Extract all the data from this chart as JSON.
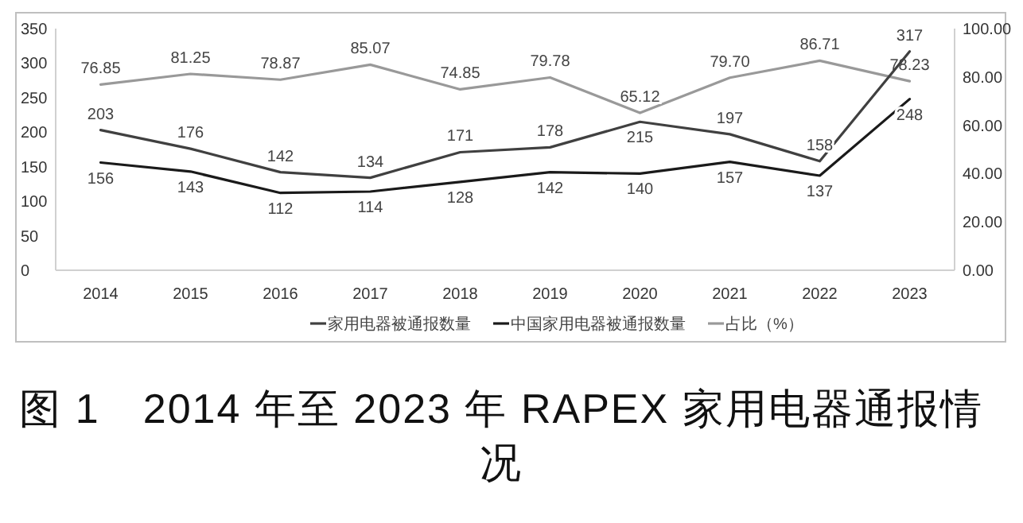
{
  "chart_data": {
    "type": "line",
    "title": "图 1　2014 年至 2023 年 RAPEX 家用电器通报情况",
    "categories": [
      "2014",
      "2015",
      "2016",
      "2017",
      "2018",
      "2019",
      "2020",
      "2021",
      "2022",
      "2023"
    ],
    "series": [
      {
        "name": "家用电器被通报数量",
        "color": "#404040",
        "values": [
          203,
          176,
          142,
          134,
          171,
          178,
          215,
          197,
          158,
          317
        ]
      },
      {
        "name": "中国家用电器被通报数量",
        "color": "#1a1a1a",
        "values": [
          156,
          143,
          112,
          114,
          128,
          142,
          140,
          157,
          137,
          248
        ]
      },
      {
        "name": "占比（%）",
        "color": "#999999",
        "axis": "y2",
        "values": [
          76.85,
          81.25,
          78.87,
          85.07,
          74.85,
          79.78,
          65.12,
          79.7,
          86.71,
          78.23
        ],
        "value_labels": [
          "76.85",
          "81.25",
          "78.87",
          "85.07",
          "74.85",
          "79.78",
          "65.12",
          "79.70",
          "86.71",
          "78.23"
        ]
      }
    ],
    "ylim": [
      0,
      350
    ],
    "yticks": [
      0,
      50,
      100,
      150,
      200,
      250,
      300,
      350
    ],
    "y2lim": [
      0,
      100
    ],
    "y2ticks": [
      {
        "value": 0,
        "label": "0.00"
      },
      {
        "value": 20,
        "label": "20.00"
      },
      {
        "value": 40,
        "label": "40.00"
      },
      {
        "value": 60,
        "label": "60.00"
      },
      {
        "value": 80,
        "label": "80.00"
      },
      {
        "value": 100,
        "label": "100.00"
      }
    ],
    "data_labels": true,
    "legend": "bottom",
    "grid": false,
    "marker": "none",
    "line_style": "solid"
  }
}
